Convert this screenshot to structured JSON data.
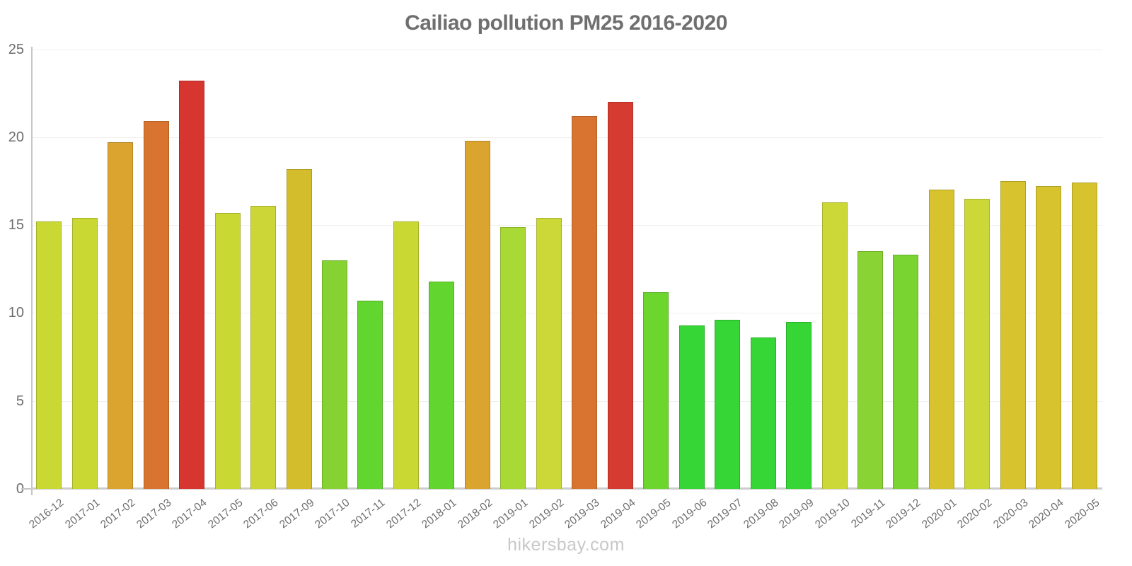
{
  "title": "Cailiao pollution PM25 2016-2020",
  "watermark": "hikersbay.com",
  "chart_data": {
    "type": "bar",
    "title": "Cailiao pollution PM25 2016-2020",
    "xlabel": "",
    "ylabel": "",
    "ylim": [
      0,
      25
    ],
    "yticks": [
      0,
      5,
      10,
      15,
      20,
      25
    ],
    "grid": true,
    "legend": "none",
    "categories": [
      "2016-12",
      "2017-01",
      "2017-02",
      "2017-03",
      "2017-04",
      "2017-05",
      "2017-06",
      "2017-09",
      "2017-10",
      "2017-11",
      "2017-12",
      "2018-01",
      "2018-02",
      "2019-01",
      "2019-02",
      "2019-03",
      "2019-04",
      "2019-05",
      "2019-06",
      "2019-07",
      "2019-08",
      "2019-09",
      "2019-10",
      "2019-11",
      "2019-12",
      "2020-01",
      "2020-02",
      "2020-03",
      "2020-04",
      "2020-05"
    ],
    "values": [
      15.2,
      15.4,
      19.7,
      20.9,
      23.2,
      15.7,
      16.1,
      18.2,
      13.0,
      10.7,
      15.2,
      11.8,
      19.8,
      14.9,
      15.4,
      21.2,
      22.0,
      11.2,
      9.3,
      9.6,
      8.6,
      9.5,
      16.3,
      13.5,
      13.3,
      17.0,
      16.5,
      17.5,
      17.2,
      17.4
    ],
    "bar_colors": [
      "#c9d832",
      "#c9d832",
      "#dba42e",
      "#d8742f",
      "#d6362f",
      "#c9d832",
      "#ccd637",
      "#d4bd2c",
      "#87d233",
      "#62d62e",
      "#c9d832",
      "#62d62e",
      "#dba42e",
      "#a8d934",
      "#ccd837",
      "#d8742f",
      "#d63b31",
      "#6cd62f",
      "#35d636",
      "#35d636",
      "#35d636",
      "#35d636",
      "#ccd837",
      "#8ad334",
      "#79d431",
      "#d6c32e",
      "#ccd837",
      "#d6c32e",
      "#d6c32e",
      "#d6c32e"
    ]
  },
  "colors": {
    "title_text": "#6f6f6f",
    "axis_text": "#6e6e6e",
    "watermark_text": "#c8c8c8",
    "axis_line": "#c6c6c6",
    "baseline": "#cccccc",
    "gridline": "#f0f0f0",
    "background": "#ffffff"
  }
}
